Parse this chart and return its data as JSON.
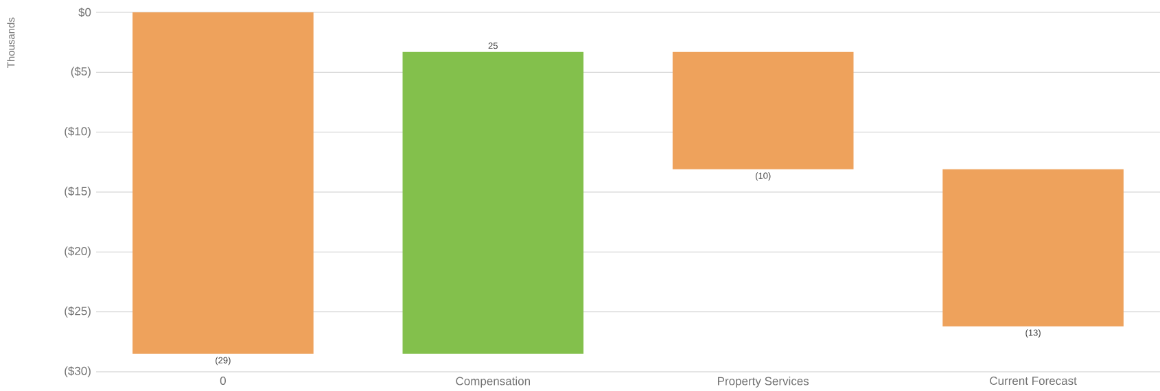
{
  "chart_data": {
    "type": "bar",
    "ylabel": "Thousands",
    "categories": [
      "0",
      "Compensation",
      "Property Services",
      "Current Forecast"
    ],
    "base": [
      0,
      -28.5,
      -3.3,
      -13.1
    ],
    "values": [
      -28.5,
      25.2,
      -9.8,
      -13.1
    ],
    "colors": [
      "#eea25c",
      "#83c04c",
      "#eea25c",
      "#eea25c"
    ],
    "value_labels": [
      "(29)",
      "25",
      "(10)",
      "(13)"
    ],
    "ylim": [
      -30,
      0
    ],
    "yticks": [
      {
        "value": 0,
        "label": "$0"
      },
      {
        "value": -5,
        "label": "($5)"
      },
      {
        "value": -10,
        "label": "($10)"
      },
      {
        "value": -15,
        "label": "($15)"
      },
      {
        "value": -20,
        "label": "($20)"
      },
      {
        "value": -25,
        "label": "($25)"
      },
      {
        "value": -30,
        "label": "($30)"
      }
    ],
    "grid": "y"
  }
}
